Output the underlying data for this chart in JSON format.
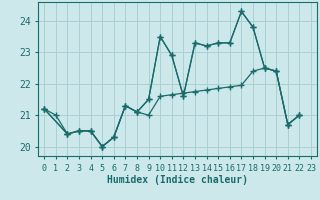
{
  "xlabel": "Humidex (Indice chaleur)",
  "bg_color": "#cce8ea",
  "grid_color": "#aacfd2",
  "line_color": "#1a6b6b",
  "xlim": [
    -0.5,
    23.5
  ],
  "ylim": [
    19.7,
    24.6
  ],
  "yticks": [
    20,
    21,
    22,
    23,
    24
  ],
  "xticks": [
    0,
    1,
    2,
    3,
    4,
    5,
    6,
    7,
    8,
    9,
    10,
    11,
    12,
    13,
    14,
    15,
    16,
    17,
    18,
    19,
    20,
    21,
    22,
    23
  ],
  "s1_x": [
    0,
    1,
    2,
    3,
    4,
    5,
    6,
    7,
    8,
    9,
    10,
    11,
    12,
    13,
    14,
    15,
    16,
    17,
    18,
    19,
    20,
    21,
    22
  ],
  "s1_y": [
    21.2,
    21.0,
    20.4,
    20.5,
    20.5,
    20.0,
    20.3,
    21.3,
    21.1,
    21.5,
    23.5,
    22.9,
    21.6,
    23.3,
    23.2,
    23.3,
    23.3,
    24.3,
    23.8,
    22.5,
    22.4,
    20.7,
    21.0
  ],
  "s2_x": [
    0,
    2,
    3,
    4,
    5,
    6,
    7,
    8,
    9,
    10,
    11,
    12,
    13,
    14,
    15,
    16,
    17,
    18,
    19,
    20,
    21,
    22
  ],
  "s2_y": [
    21.2,
    20.4,
    20.5,
    20.5,
    20.0,
    20.3,
    21.3,
    21.1,
    21.0,
    21.6,
    21.65,
    21.7,
    21.75,
    21.8,
    21.85,
    21.9,
    21.95,
    22.4,
    22.5,
    22.4,
    20.7,
    21.0
  ],
  "s3_x": [
    0,
    2,
    3,
    4,
    5,
    6,
    7,
    8,
    9,
    10,
    11,
    12,
    13,
    14,
    15,
    16,
    17,
    18,
    19,
    20,
    21,
    22
  ],
  "s3_y": [
    21.2,
    20.4,
    20.5,
    20.5,
    20.0,
    20.3,
    21.3,
    21.1,
    21.5,
    23.5,
    22.9,
    21.6,
    23.3,
    23.2,
    23.3,
    23.3,
    24.3,
    23.8,
    22.5,
    22.4,
    20.7,
    21.0
  ],
  "font_family": "monospace"
}
